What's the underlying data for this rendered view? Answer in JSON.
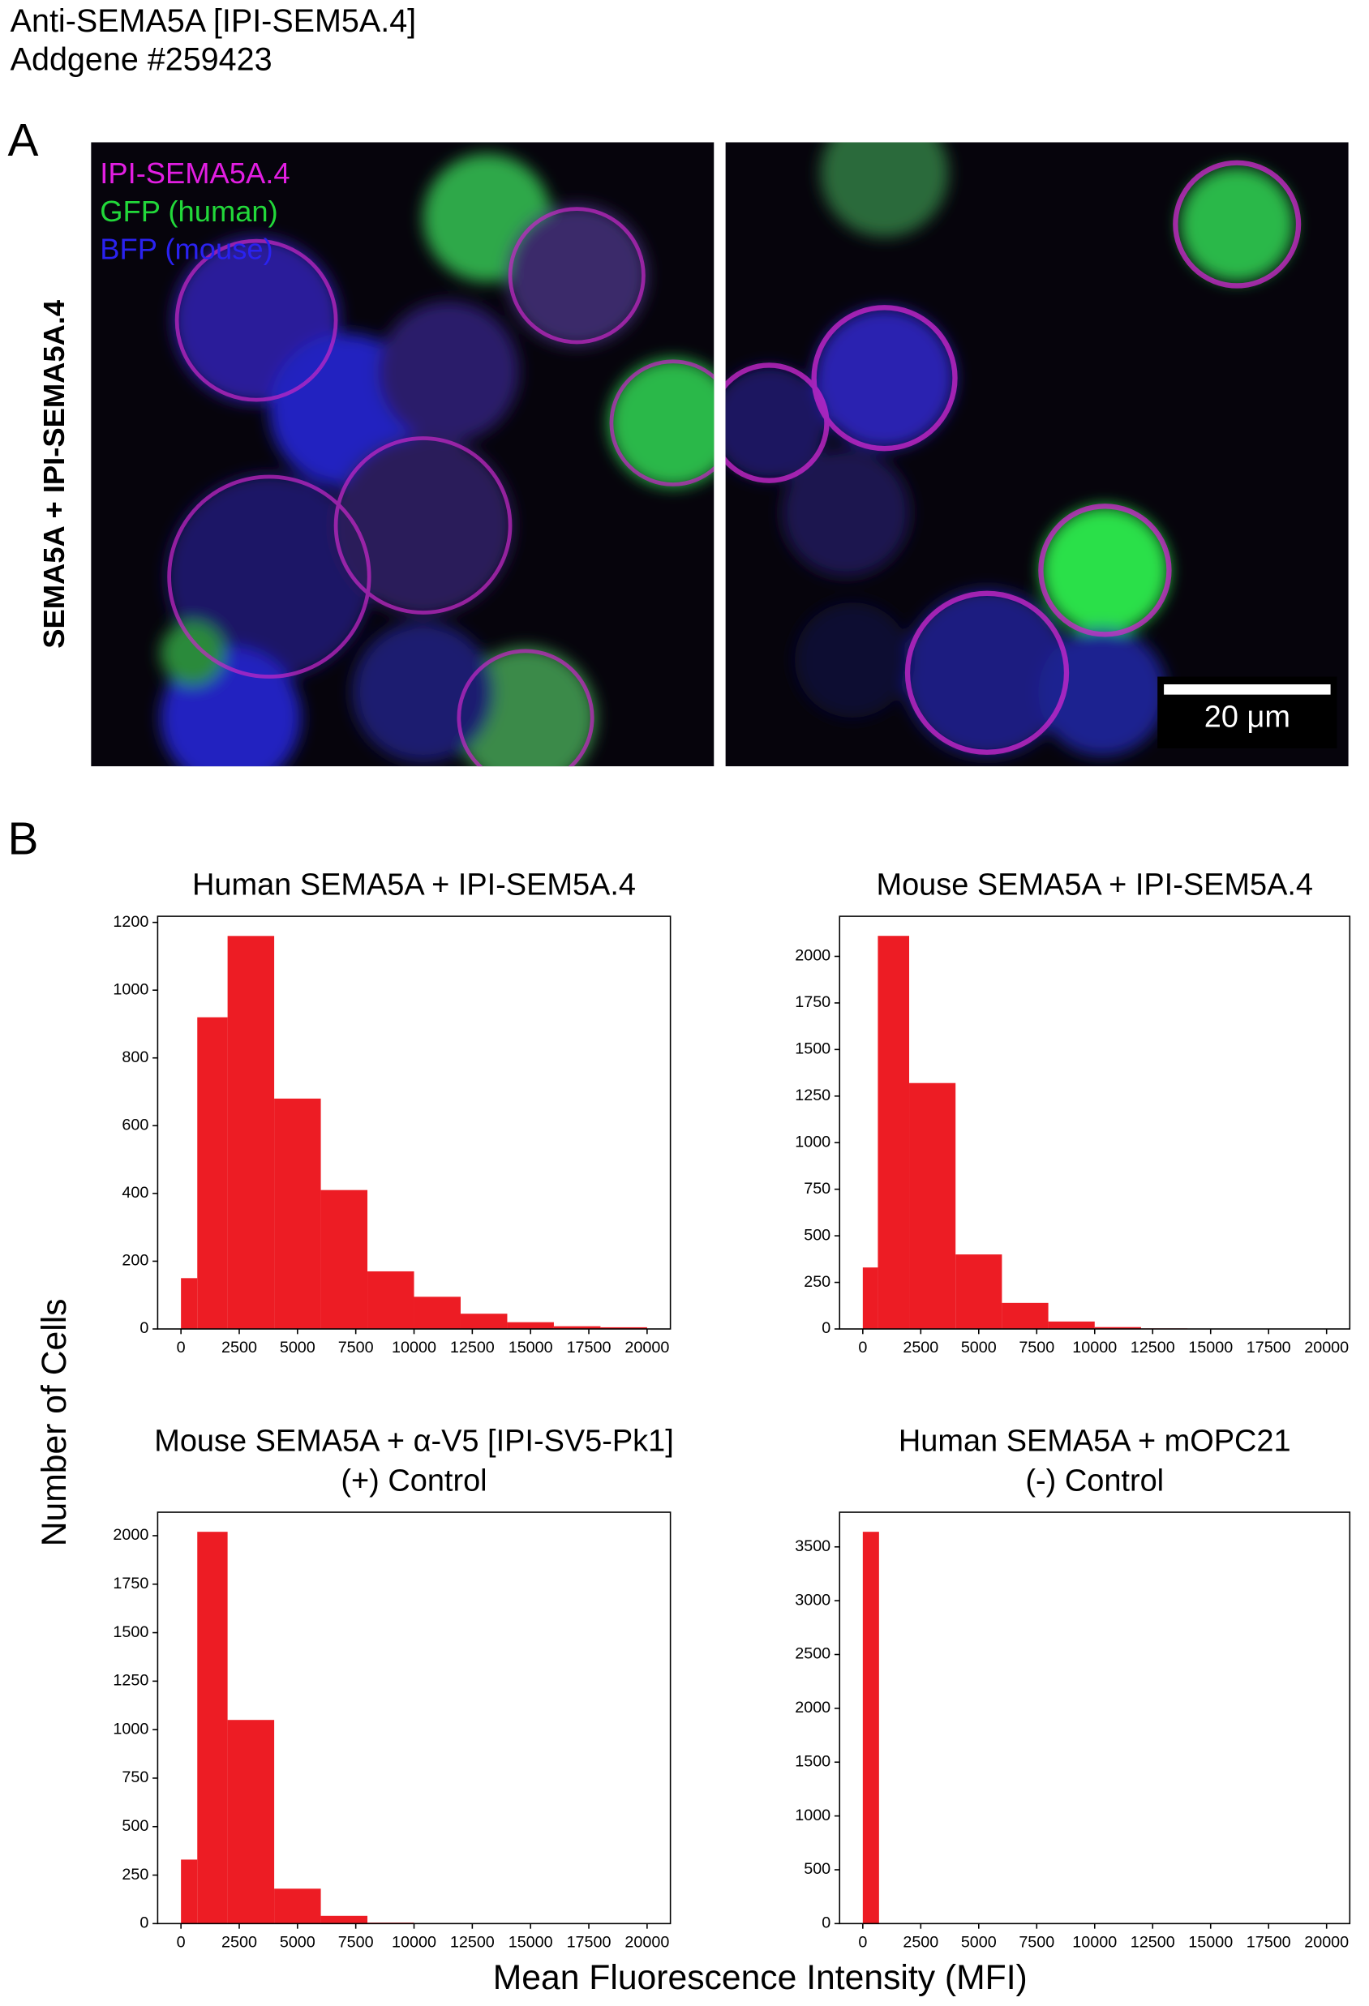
{
  "header": {
    "title": "Anti-SEMA5A [IPI-SEM5A.4]",
    "subtitle": "Addgene #259423"
  },
  "panel_a": {
    "label": "A",
    "row_label": "SEMA5A + IPI-SEMA5A.4",
    "legend": [
      {
        "text": "IPI-SEMA5A.4",
        "color": "#e21ee2"
      },
      {
        "text": "GFP (human)",
        "color": "#22d83a"
      },
      {
        "text": "BFP (mouse)",
        "color": "#2a22f0"
      }
    ],
    "scale_bar": "20 μm"
  },
  "panel_b": {
    "label": "B",
    "ylabel": "Number of Cells",
    "xlabel": "Mean Fluorescence Intensity (MFI)"
  },
  "chart_data": [
    {
      "type": "histogram",
      "title": "Human SEMA5A + IPI-SEM5A.4",
      "color": "#ed1c24",
      "bins": [
        0,
        700,
        2000,
        4000,
        6000,
        8000,
        10000,
        12000,
        14000,
        16000,
        18000,
        20000
      ],
      "counts": [
        150,
        920,
        1160,
        680,
        410,
        170,
        95,
        45,
        20,
        8,
        5
      ],
      "xlim": [
        -1000,
        21000
      ],
      "ylim": [
        0,
        1218
      ],
      "xticks": [
        0,
        2500,
        5000,
        7500,
        10000,
        12500,
        15000,
        17500,
        20000
      ],
      "yticks": [
        0,
        200,
        400,
        600,
        800,
        1000,
        1200
      ]
    },
    {
      "type": "histogram",
      "title": "Mouse SEMA5A + IPI-SEM5A.4",
      "color": "#ed1c24",
      "bins": [
        0,
        650,
        2000,
        4000,
        6000,
        8000,
        10000,
        12000,
        14000,
        16000,
        18000,
        20000
      ],
      "counts": [
        330,
        2110,
        1320,
        400,
        140,
        40,
        10,
        3,
        2,
        1,
        1
      ],
      "xlim": [
        -1000,
        21000
      ],
      "ylim": [
        0,
        2215
      ],
      "xticks": [
        0,
        2500,
        5000,
        7500,
        10000,
        12500,
        15000,
        17500,
        20000
      ],
      "yticks": [
        0,
        250,
        500,
        750,
        1000,
        1250,
        1500,
        1750,
        2000
      ]
    },
    {
      "type": "histogram",
      "title": "Mouse SEMA5A + α-V5 [IPI-SV5-Pk1]",
      "subtitle": "(+) Control",
      "color": "#ed1c24",
      "bins": [
        0,
        700,
        2000,
        4000,
        6000,
        8000,
        10000,
        12000,
        14000
      ],
      "counts": [
        330,
        2020,
        1050,
        180,
        40,
        5,
        2,
        1
      ],
      "xlim": [
        -1000,
        21000
      ],
      "ylim": [
        0,
        2121
      ],
      "xticks": [
        0,
        2500,
        5000,
        7500,
        10000,
        12500,
        15000,
        17500,
        20000
      ],
      "yticks": [
        0,
        250,
        500,
        750,
        1000,
        1250,
        1500,
        1750,
        2000
      ]
    },
    {
      "type": "histogram",
      "title": "Human SEMA5A + mOPC21",
      "subtitle": "(-) Control",
      "color": "#ed1c24",
      "bins": [
        0,
        700
      ],
      "counts": [
        3640
      ],
      "xlim": [
        -1000,
        21000
      ],
      "ylim": [
        0,
        3822
      ],
      "xticks": [
        0,
        2500,
        5000,
        7500,
        10000,
        12500,
        15000,
        17500,
        20000
      ],
      "yticks": [
        0,
        500,
        1000,
        1500,
        2000,
        2500,
        3000,
        3500
      ]
    }
  ]
}
